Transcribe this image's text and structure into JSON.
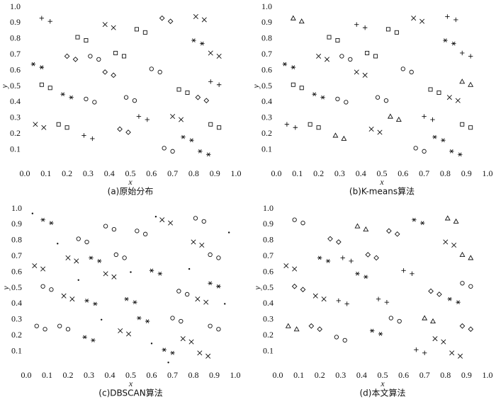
{
  "chart_data": [
    {
      "type": "scatter",
      "title": "(a)原始分布",
      "x_label": "x",
      "y_label": "y",
      "xlim": [
        0,
        1
      ],
      "ylim": [
        0,
        1
      ],
      "xticks": [
        {
          "value": 0,
          "label": "0.0"
        },
        0.1,
        0.2,
        0.3,
        0.4,
        0.5,
        0.6,
        0.7,
        0.8,
        0.9,
        {
          "value": 1,
          "label": "1.0"
        }
      ],
      "yticks": [
        0.1,
        0.2,
        0.3,
        0.4,
        0.5,
        0.6,
        0.7,
        0.8,
        0.9,
        {
          "value": 1,
          "label": "1.0"
        }
      ],
      "series": [
        {
          "marker": "star",
          "color": "#111",
          "x": [
            0.04,
            0.08,
            0.18,
            0.22,
            0.8,
            0.84,
            0.83,
            0.87,
            0.75,
            0.79
          ],
          "y": [
            0.64,
            0.62,
            0.45,
            0.43,
            0.79,
            0.77,
            0.09,
            0.07,
            0.18,
            0.16
          ]
        },
        {
          "marker": "plus",
          "color": "#111",
          "x": [
            0.08,
            0.12,
            0.28,
            0.32,
            0.88,
            0.92,
            0.54,
            0.58
          ],
          "y": [
            0.93,
            0.91,
            0.19,
            0.17,
            0.53,
            0.51,
            0.31,
            0.29
          ]
        },
        {
          "marker": "cross",
          "color": "#111",
          "x": [
            0.38,
            0.42,
            0.81,
            0.85,
            0.88,
            0.92,
            0.05,
            0.09,
            0.7,
            0.74
          ],
          "y": [
            0.89,
            0.87,
            0.94,
            0.92,
            0.71,
            0.69,
            0.26,
            0.24,
            0.31,
            0.29
          ]
        },
        {
          "marker": "circle",
          "color": "#111",
          "x": [
            0.31,
            0.35,
            0.29,
            0.33,
            0.6,
            0.64,
            0.66,
            0.7,
            0.48,
            0.52
          ],
          "y": [
            0.69,
            0.67,
            0.42,
            0.4,
            0.61,
            0.59,
            0.11,
            0.09,
            0.43,
            0.41
          ]
        },
        {
          "marker": "diamond",
          "color": "#111",
          "x": [
            0.65,
            0.69,
            0.2,
            0.24,
            0.38,
            0.42,
            0.82,
            0.86,
            0.45,
            0.49
          ],
          "y": [
            0.93,
            0.91,
            0.69,
            0.67,
            0.59,
            0.57,
            0.43,
            0.41,
            0.23,
            0.21
          ]
        },
        {
          "marker": "square",
          "color": "#111",
          "x": [
            0.53,
            0.57,
            0.43,
            0.47,
            0.08,
            0.12,
            0.73,
            0.77,
            0.16,
            0.2,
            0.25,
            0.29,
            0.88,
            0.92
          ],
          "y": [
            0.86,
            0.84,
            0.71,
            0.69,
            0.51,
            0.49,
            0.48,
            0.46,
            0.26,
            0.24,
            0.81,
            0.79,
            0.26,
            0.24
          ]
        }
      ]
    },
    {
      "type": "scatter",
      "title": "(b)K-means算法",
      "x_label": "x",
      "y_label": "y",
      "xlim": [
        0,
        1
      ],
      "ylim": [
        0,
        1
      ],
      "xticks": [
        {
          "value": 0,
          "label": "0.0"
        },
        0.1,
        0.2,
        0.3,
        0.4,
        0.5,
        0.6,
        0.7,
        0.8,
        0.9,
        {
          "value": 1,
          "label": "1.0"
        }
      ],
      "yticks": [
        0.1,
        0.2,
        0.3,
        0.4,
        0.5,
        0.6,
        0.7,
        0.8,
        0.9,
        {
          "value": 1,
          "label": "1.0"
        }
      ],
      "series": [
        {
          "marker": "star",
          "color": "#111",
          "x": [
            0.04,
            0.08,
            0.18,
            0.22,
            0.8,
            0.84,
            0.83,
            0.87,
            0.75,
            0.79
          ],
          "y": [
            0.64,
            0.62,
            0.45,
            0.43,
            0.79,
            0.77,
            0.09,
            0.07,
            0.18,
            0.16
          ]
        },
        {
          "marker": "triangle",
          "color": "#111",
          "x": [
            0.08,
            0.12,
            0.28,
            0.32,
            0.88,
            0.92,
            0.54,
            0.58
          ],
          "y": [
            0.93,
            0.91,
            0.19,
            0.17,
            0.53,
            0.51,
            0.31,
            0.29
          ]
        },
        {
          "marker": "plus",
          "color": "#111",
          "x": [
            0.38,
            0.42,
            0.81,
            0.85,
            0.88,
            0.92,
            0.05,
            0.09,
            0.7,
            0.74
          ],
          "y": [
            0.89,
            0.87,
            0.94,
            0.92,
            0.71,
            0.69,
            0.26,
            0.24,
            0.31,
            0.29
          ]
        },
        {
          "marker": "circle",
          "color": "#111",
          "x": [
            0.31,
            0.35,
            0.29,
            0.33,
            0.6,
            0.64,
            0.66,
            0.7,
            0.48,
            0.52
          ],
          "y": [
            0.69,
            0.67,
            0.42,
            0.4,
            0.61,
            0.59,
            0.11,
            0.09,
            0.43,
            0.41
          ]
        },
        {
          "marker": "cross",
          "color": "#111",
          "x": [
            0.65,
            0.69,
            0.2,
            0.24,
            0.38,
            0.42,
            0.82,
            0.86,
            0.45,
            0.49
          ],
          "y": [
            0.93,
            0.91,
            0.69,
            0.67,
            0.59,
            0.57,
            0.43,
            0.41,
            0.23,
            0.21
          ]
        },
        {
          "marker": "square",
          "color": "#111",
          "x": [
            0.53,
            0.57,
            0.43,
            0.47,
            0.08,
            0.12,
            0.73,
            0.77,
            0.16,
            0.2,
            0.25,
            0.29,
            0.88,
            0.92
          ],
          "y": [
            0.86,
            0.84,
            0.71,
            0.69,
            0.51,
            0.49,
            0.48,
            0.46,
            0.26,
            0.24,
            0.81,
            0.79,
            0.26,
            0.24
          ]
        }
      ]
    },
    {
      "type": "scatter",
      "title": "(c)DBSCAN算法",
      "x_label": "x",
      "y_label": "y",
      "xlim": [
        0,
        1
      ],
      "ylim": [
        0,
        1
      ],
      "xticks": [
        {
          "value": 0,
          "label": "0.0"
        },
        0.1,
        0.2,
        0.3,
        0.4,
        0.5,
        0.6,
        0.7,
        0.8,
        0.9,
        {
          "value": 1,
          "label": "1.0"
        }
      ],
      "yticks": [
        0.1,
        0.2,
        0.3,
        0.4,
        0.5,
        0.6,
        0.7,
        0.8,
        0.9,
        {
          "value": 1,
          "label": "1.0"
        }
      ],
      "series": [
        {
          "marker": "cross",
          "color": "#111",
          "x": [
            0.04,
            0.08,
            0.18,
            0.22,
            0.8,
            0.84,
            0.83,
            0.87,
            0.75,
            0.79
          ],
          "y": [
            0.64,
            0.62,
            0.45,
            0.43,
            0.79,
            0.77,
            0.09,
            0.07,
            0.18,
            0.16
          ]
        },
        {
          "marker": "star",
          "color": "#111",
          "x": [
            0.08,
            0.12,
            0.28,
            0.32,
            0.88,
            0.92,
            0.54,
            0.58
          ],
          "y": [
            0.93,
            0.91,
            0.19,
            0.17,
            0.53,
            0.51,
            0.31,
            0.29
          ]
        },
        {
          "marker": "circle",
          "color": "#111",
          "x": [
            0.38,
            0.42,
            0.81,
            0.85,
            0.88,
            0.92,
            0.05,
            0.09,
            0.7,
            0.74
          ],
          "y": [
            0.89,
            0.87,
            0.94,
            0.92,
            0.71,
            0.69,
            0.26,
            0.24,
            0.31,
            0.29
          ]
        },
        {
          "marker": "star",
          "color": "#111",
          "x": [
            0.31,
            0.35,
            0.29,
            0.33,
            0.6,
            0.64,
            0.66,
            0.7,
            0.48,
            0.52
          ],
          "y": [
            0.69,
            0.67,
            0.42,
            0.4,
            0.61,
            0.59,
            0.11,
            0.09,
            0.43,
            0.41
          ]
        },
        {
          "marker": "cross",
          "color": "#111",
          "x": [
            0.65,
            0.69,
            0.2,
            0.24,
            0.38,
            0.42,
            0.82,
            0.86,
            0.45,
            0.49
          ],
          "y": [
            0.93,
            0.91,
            0.69,
            0.67,
            0.59,
            0.57,
            0.43,
            0.41,
            0.23,
            0.21
          ]
        },
        {
          "marker": "circle",
          "color": "#111",
          "x": [
            0.53,
            0.57,
            0.43,
            0.47,
            0.08,
            0.12,
            0.73,
            0.77,
            0.16,
            0.2,
            0.25,
            0.29,
            0.88,
            0.92
          ],
          "y": [
            0.86,
            0.84,
            0.71,
            0.69,
            0.51,
            0.49,
            0.48,
            0.46,
            0.26,
            0.24,
            0.81,
            0.79,
            0.26,
            0.24
          ]
        },
        {
          "marker": "dot",
          "color": "#111",
          "x": [
            0.03,
            0.15,
            0.36,
            0.5,
            0.62,
            0.78,
            0.95,
            0.6,
            0.25,
            0.97,
            0.68
          ],
          "y": [
            0.97,
            0.78,
            0.3,
            0.6,
            0.95,
            0.62,
            0.4,
            0.15,
            0.55,
            0.85,
            0.03
          ]
        }
      ]
    },
    {
      "type": "scatter",
      "title": "(d)本文算法",
      "x_label": "x",
      "y_label": "y",
      "xlim": [
        0,
        1
      ],
      "ylim": [
        0,
        1
      ],
      "xticks": [
        {
          "value": 0,
          "label": "0.0"
        },
        0.1,
        0.2,
        0.3,
        0.4,
        0.5,
        0.6,
        0.7,
        0.8,
        0.9,
        {
          "value": 1,
          "label": "1.0"
        }
      ],
      "yticks": [
        0.1,
        0.2,
        0.3,
        0.4,
        0.5,
        0.6,
        0.7,
        0.8,
        0.9,
        {
          "value": 1,
          "label": "1.0"
        }
      ],
      "series": [
        {
          "marker": "cross",
          "color": "#111",
          "x": [
            0.04,
            0.08,
            0.18,
            0.22,
            0.8,
            0.84,
            0.83,
            0.87,
            0.75,
            0.79
          ],
          "y": [
            0.64,
            0.62,
            0.45,
            0.43,
            0.79,
            0.77,
            0.09,
            0.07,
            0.18,
            0.16
          ]
        },
        {
          "marker": "circle",
          "color": "#111",
          "x": [
            0.08,
            0.12,
            0.28,
            0.32,
            0.88,
            0.92,
            0.54,
            0.58
          ],
          "y": [
            0.93,
            0.91,
            0.19,
            0.17,
            0.53,
            0.51,
            0.31,
            0.29
          ]
        },
        {
          "marker": "triangle",
          "color": "#111",
          "x": [
            0.38,
            0.42,
            0.81,
            0.85,
            0.88,
            0.92,
            0.05,
            0.09,
            0.7,
            0.74
          ],
          "y": [
            0.89,
            0.87,
            0.94,
            0.92,
            0.71,
            0.69,
            0.26,
            0.24,
            0.31,
            0.29
          ]
        },
        {
          "marker": "plus",
          "color": "#111",
          "x": [
            0.31,
            0.35,
            0.29,
            0.33,
            0.6,
            0.64,
            0.66,
            0.7,
            0.48,
            0.52
          ],
          "y": [
            0.69,
            0.67,
            0.42,
            0.4,
            0.61,
            0.59,
            0.11,
            0.09,
            0.43,
            0.41
          ]
        },
        {
          "marker": "star",
          "color": "#111",
          "x": [
            0.65,
            0.69,
            0.2,
            0.24,
            0.38,
            0.42,
            0.82,
            0.86,
            0.45,
            0.49
          ],
          "y": [
            0.93,
            0.91,
            0.69,
            0.67,
            0.59,
            0.57,
            0.43,
            0.41,
            0.23,
            0.21
          ]
        },
        {
          "marker": "diamond",
          "color": "#111",
          "x": [
            0.53,
            0.57,
            0.43,
            0.47,
            0.08,
            0.12,
            0.73,
            0.77,
            0.16,
            0.2,
            0.25,
            0.29,
            0.88,
            0.92
          ],
          "y": [
            0.86,
            0.84,
            0.71,
            0.69,
            0.51,
            0.49,
            0.48,
            0.46,
            0.26,
            0.24,
            0.81,
            0.79,
            0.26,
            0.24
          ]
        }
      ]
    }
  ]
}
